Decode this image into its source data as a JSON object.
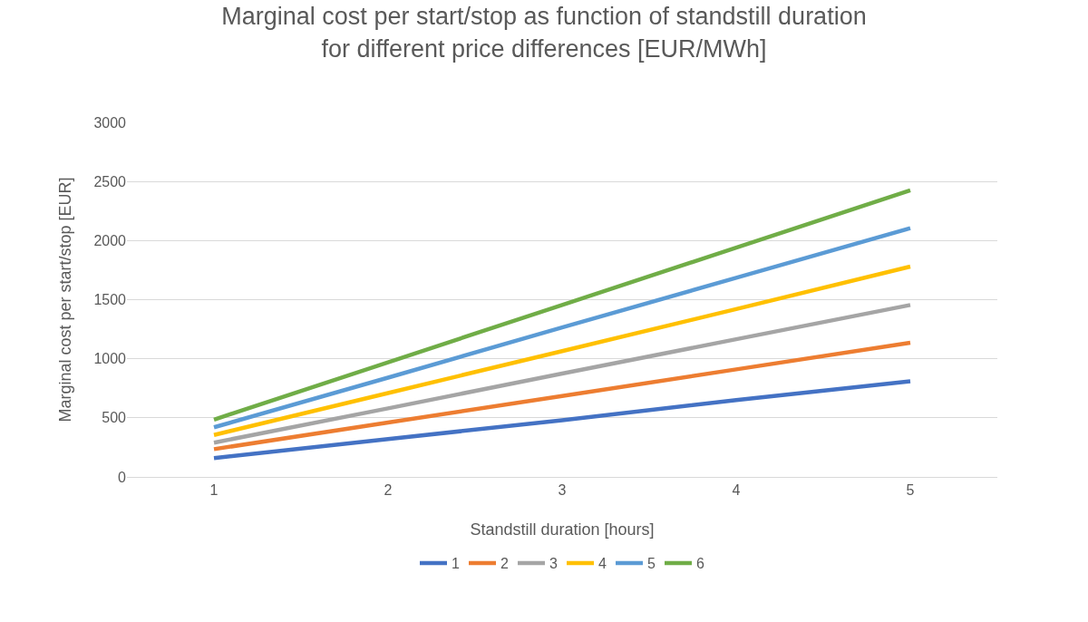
{
  "chart_data": {
    "type": "line",
    "title": "Marginal cost per start/stop as function of standstill duration\nfor different price differences [EUR/MWh]",
    "xlabel": "Standstill duration [hours]",
    "ylabel": "Marginal cost per start/stop [EUR]",
    "categories": [
      "1",
      "2",
      "3",
      "4",
      "5"
    ],
    "series": [
      {
        "name": "1",
        "color": "#4472c4",
        "values": [
          160,
          320,
          480,
          650,
          810
        ]
      },
      {
        "name": "2",
        "color": "#ed7d31",
        "values": [
          235,
          460,
          685,
          910,
          1135
        ]
      },
      {
        "name": "3",
        "color": "#a5a5a5",
        "values": [
          290,
          580,
          875,
          1165,
          1455
        ]
      },
      {
        "name": "4",
        "color": "#ffc000",
        "values": [
          355,
          710,
          1065,
          1420,
          1780
        ]
      },
      {
        "name": "5",
        "color": "#5b9bd5",
        "values": [
          420,
          840,
          1265,
          1685,
          2105
        ]
      },
      {
        "name": "6",
        "color": "#70ad47",
        "values": [
          485,
          970,
          1455,
          1940,
          2425
        ]
      }
    ],
    "ylim": [
      0,
      3000
    ],
    "yticks": [
      0,
      500,
      1000,
      1500,
      2000,
      2500,
      3000
    ],
    "grid": "y",
    "legend": "bottom",
    "marker": "none",
    "line_style": "solid"
  }
}
